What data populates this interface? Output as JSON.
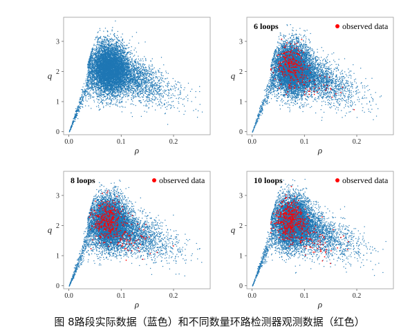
{
  "figure": {
    "caption": "图 8路段实际数据（蓝色）和不同数量环路检测器观测数据（红色）"
  },
  "chart_data": [
    {
      "type": "scatter",
      "title": "",
      "xlabel": "ρ",
      "ylabel": "q",
      "xlim": [
        -0.01,
        0.27
      ],
      "ylim": [
        -0.1,
        3.8
      ],
      "xticks": [
        "0.0",
        "0.1",
        "0.2"
      ],
      "yticks": [
        "0",
        "1",
        "2",
        "3"
      ],
      "grid": false,
      "legend": null,
      "series": [
        {
          "role": "road",
          "color": "#1f77b4",
          "approx_points": 9000,
          "cloud": {
            "center": [
              0.075,
              2.1
            ],
            "x_range": [
              0.0,
              0.26
            ],
            "y_range": [
              0.0,
              3.7
            ],
            "peak_density": [
              0.075,
              2.1
            ]
          }
        }
      ]
    },
    {
      "type": "scatter",
      "title": "6 loops",
      "xlabel": "ρ",
      "ylabel": "q",
      "xlim": [
        -0.01,
        0.27
      ],
      "ylim": [
        -0.1,
        3.8
      ],
      "xticks": [
        "0.0",
        "0.1",
        "0.2"
      ],
      "yticks": [
        "0",
        "1",
        "2",
        "3"
      ],
      "grid": false,
      "legend": "top-right",
      "series": [
        {
          "role": "road",
          "color": "#1f77b4",
          "approx_points": 9000,
          "cloud": {
            "center": [
              0.075,
              2.1
            ],
            "x_range": [
              0.0,
              0.26
            ],
            "y_range": [
              0.0,
              3.7
            ]
          }
        },
        {
          "name": "observed data",
          "color": "#ff0000",
          "approx_points": 300,
          "cloud": {
            "center": [
              0.072,
              2.2
            ],
            "x_range": [
              0.04,
              0.12
            ],
            "y_range": [
              1.4,
              3.0
            ]
          }
        }
      ]
    },
    {
      "type": "scatter",
      "title": "8 loops",
      "xlabel": "ρ",
      "ylabel": "q",
      "xlim": [
        -0.01,
        0.27
      ],
      "ylim": [
        -0.1,
        3.8
      ],
      "xticks": [
        "0.0",
        "0.1",
        "0.2"
      ],
      "yticks": [
        "0",
        "1",
        "2",
        "3"
      ],
      "grid": false,
      "legend": "top-right",
      "series": [
        {
          "role": "road",
          "color": "#1f77b4",
          "approx_points": 9000,
          "cloud": {
            "center": [
              0.075,
              2.1
            ],
            "x_range": [
              0.0,
              0.26
            ],
            "y_range": [
              0.0,
              3.7
            ]
          }
        },
        {
          "name": "observed data",
          "color": "#ff0000",
          "approx_points": 400,
          "cloud": {
            "center": [
              0.072,
              2.2
            ],
            "x_range": [
              0.04,
              0.13
            ],
            "y_range": [
              1.3,
              3.0
            ]
          }
        }
      ]
    },
    {
      "type": "scatter",
      "title": "10 loops",
      "xlabel": "ρ",
      "ylabel": "q",
      "xlim": [
        -0.01,
        0.27
      ],
      "ylim": [
        -0.1,
        3.8
      ],
      "xticks": [
        "0.0",
        "0.1",
        "0.2"
      ],
      "yticks": [
        "0",
        "1",
        "2",
        "3"
      ],
      "grid": false,
      "legend": "top-right",
      "series": [
        {
          "role": "road",
          "color": "#1f77b4",
          "approx_points": 9000,
          "cloud": {
            "center": [
              0.075,
              2.1
            ],
            "x_range": [
              0.0,
              0.26
            ],
            "y_range": [
              0.0,
              3.7
            ]
          }
        },
        {
          "name": "observed data",
          "color": "#ff0000",
          "approx_points": 500,
          "cloud": {
            "center": [
              0.072,
              2.2
            ],
            "x_range": [
              0.04,
              0.13
            ],
            "y_range": [
              1.3,
              3.0
            ]
          }
        }
      ]
    }
  ]
}
